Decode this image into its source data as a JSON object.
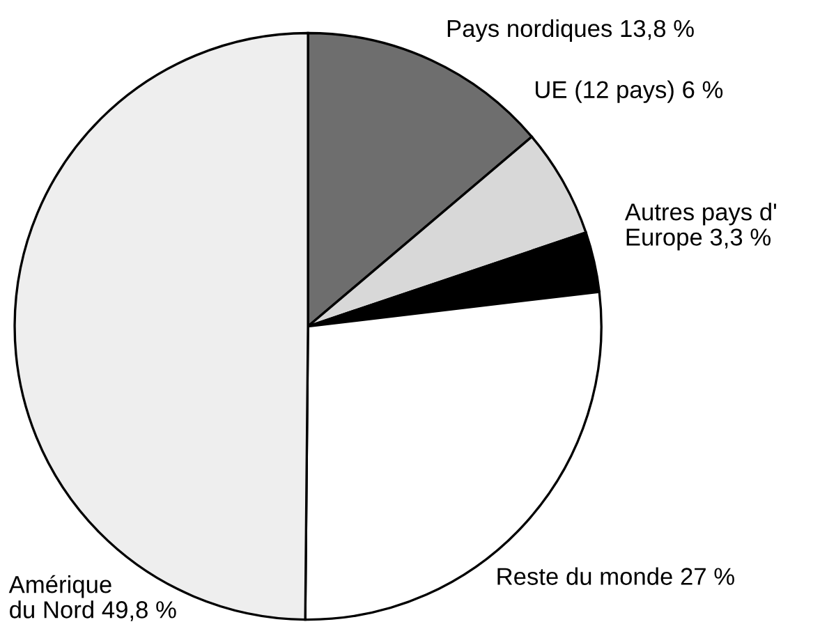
{
  "chart_data": {
    "type": "pie",
    "categories": [
      "Pays nordiques",
      "UE (12 pays)",
      "Autres pays d'\nEurope",
      "Reste du monde",
      "Amérique\ndu Nord"
    ],
    "values": [
      13.8,
      6,
      3.3,
      27,
      49.8
    ],
    "value_labels": [
      "13,8 %",
      "6 %",
      "3,3 %",
      "27 %",
      "49,8 %"
    ],
    "colors": [
      "#6e6e6e",
      "#d8d8d8",
      "#000000",
      "#ffffff",
      "#eeeeee"
    ],
    "legend": false
  }
}
